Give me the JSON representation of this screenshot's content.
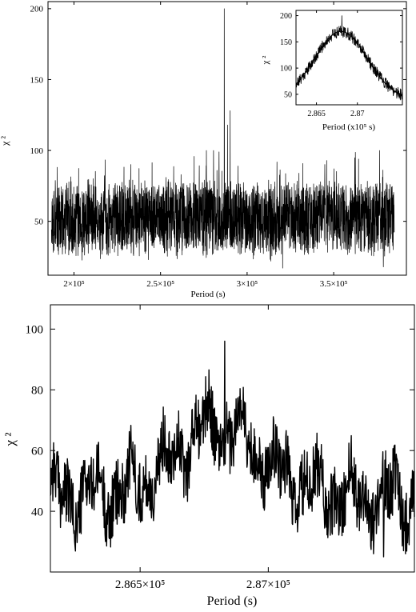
{
  "chart_data": [
    {
      "id": "top",
      "type": "line",
      "xlabel": "Period (s)",
      "ylabel": "χ ²",
      "xlim": [
        185000,
        392000
      ],
      "ylim": [
        12,
        205
      ],
      "xticks": [
        {
          "value": 200000,
          "label": "2×10⁵"
        },
        {
          "value": 250000,
          "label": "2.5×10⁵"
        },
        {
          "value": 300000,
          "label": "3×10⁵"
        },
        {
          "value": 350000,
          "label": "3.5×10⁵"
        }
      ],
      "yticks": [
        {
          "value": 50,
          "label": "50"
        },
        {
          "value": 100,
          "label": "100"
        },
        {
          "value": 150,
          "label": "150"
        },
        {
          "value": 200,
          "label": "200"
        }
      ],
      "grid": false,
      "series": [
        {
          "x_start": 187000,
          "x_end": 385000,
          "baseline": 52,
          "noise_amplitude": 34,
          "peak": {
            "x": 286800,
            "y": 200
          },
          "secondary_peaks": [
            {
              "x": 290200,
              "y": 128
            },
            {
              "x": 288700,
              "y": 118
            },
            {
              "x": 283800,
              "y": 99
            }
          ]
        }
      ]
    },
    {
      "id": "inset",
      "type": "line",
      "xlabel": "Period (x10⁵ s)",
      "ylabel": "χ ²",
      "xlim": [
        2.8625,
        2.8755
      ],
      "ylim": [
        30,
        210
      ],
      "xticks": [
        {
          "value": 2.865,
          "label": "2.865"
        },
        {
          "value": 2.87,
          "label": "2.87"
        }
      ],
      "yticks": [
        {
          "value": 50,
          "label": "50"
        },
        {
          "value": 100,
          "label": "100"
        },
        {
          "value": 150,
          "label": "150"
        },
        {
          "value": 200,
          "label": "200"
        }
      ],
      "grid": false,
      "series": [
        {
          "x_start": 2.8625,
          "x_end": 2.8755,
          "peak": {
            "x": 2.8681,
            "y": 200
          },
          "edge_level": 40
        },
        {
          "kind": "fit",
          "center": 2.868,
          "height": 170,
          "edge_level": 40
        }
      ]
    },
    {
      "id": "bottom",
      "type": "line",
      "xlabel": "Period (s)",
      "ylabel": "χ ²",
      "xlim": [
        286150,
        287570
      ],
      "ylim": [
        20,
        108
      ],
      "xticks": [
        {
          "value": 286500,
          "label": "2.865×10⁵"
        },
        {
          "value": 287000,
          "label": "2.87×10⁵"
        }
      ],
      "yticks": [
        {
          "value": 40,
          "label": "40"
        },
        {
          "value": 60,
          "label": "60"
        },
        {
          "value": 80,
          "label": "80"
        },
        {
          "value": 100,
          "label": "100"
        }
      ],
      "grid": false,
      "series": [
        {
          "x_start": 286150,
          "x_end": 287570,
          "baseline": 45,
          "hump_center": 286800,
          "hump_height": 23,
          "max_point": {
            "x": 286830,
            "y": 96
          },
          "min_point": {
            "x": 287450,
            "y": 25
          }
        }
      ]
    }
  ]
}
